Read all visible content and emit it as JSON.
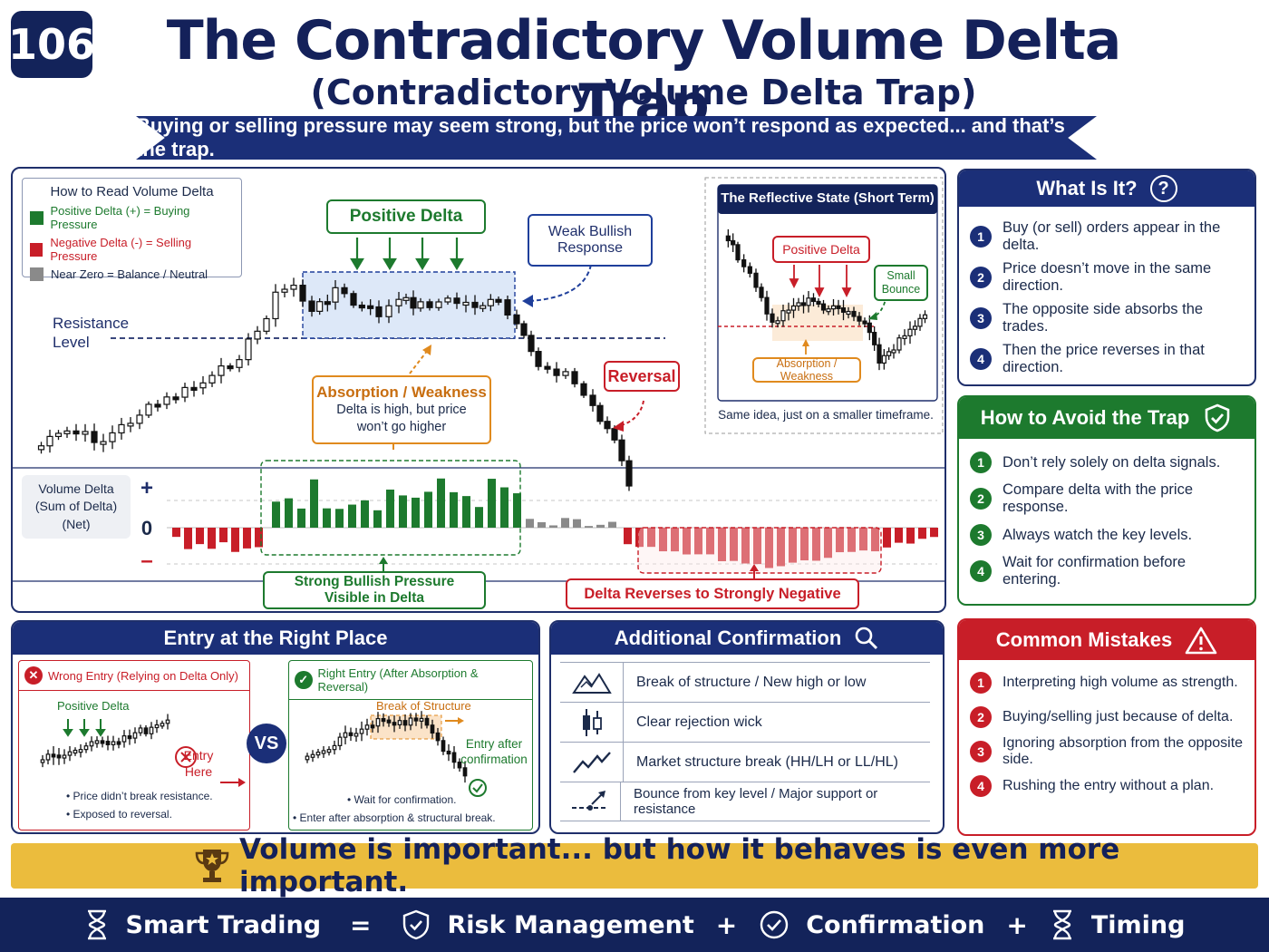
{
  "header": {
    "badge": "106",
    "title": "The Contradictory Volume Delta Trap",
    "subtitle": "(Contradictory Volume Delta Trap)",
    "banner": "Buying or selling pressure may seem strong, but the price won’t respond as expected... and that’s the trap."
  },
  "main_chart": {
    "legend": {
      "title": "How to Read Volume Delta",
      "positive": "Positive Delta (+) = Buying Pressure",
      "negative": "Negative Delta (-) = Selling Pressure",
      "neutral": "Near Zero = Balance / Neutral"
    },
    "resistance_label": "Resistance\nLevel",
    "positive_delta_label": "Positive Delta",
    "weak_bullish_label": "Weak Bullish\nResponse",
    "reversal_label": "Reversal",
    "absorption_title": "Absorption / Weakness",
    "absorption_text": "Delta is high, but price\nwon’t go higher",
    "volume_delta_label": "Volume Delta\n(Sum of Delta)\n(Net)",
    "plus_sign": "+",
    "zero_sign": "0",
    "minus_sign": "–",
    "strong_bullish_label": "Strong Bullish Pressure\nVisible in Delta",
    "delta_reverses_label": "Delta Reverses to Strongly Negative",
    "colors": {
      "bull": "#1d7a2e",
      "bear": "#c81e28",
      "neutral": "#8a8a8a",
      "accent": "#1f2f6b",
      "orange": "#e08a1e"
    }
  },
  "reflective": {
    "title": "The Reflective State (Short Term)",
    "positive_delta": "Positive Delta",
    "small_bounce": "Small\nBounce",
    "absorption": "Absorption / Weakness",
    "caption": "Same idea, just on a smaller timeframe."
  },
  "what_is_it": {
    "title": "What Is It?",
    "icon": "question-icon",
    "items": [
      "Buy (or sell) orders appear in the delta.",
      "Price doesn’t move in the same direction.",
      "The opposite side absorbs the trades.",
      "Then the price reverses in that direction."
    ]
  },
  "avoid_trap": {
    "title": "How to Avoid the Trap",
    "icon": "shield-check-icon",
    "items": [
      "Don’t rely solely on delta signals.",
      "Compare delta with the price response.",
      "Always watch the key levels.",
      "Wait for confirmation before entering."
    ]
  },
  "entry": {
    "title": "Entry at the Right Place",
    "wrong_title": "Wrong Entry (Relying on Delta Only)",
    "wrong_positive_delta": "Positive Delta",
    "wrong_entry_here": "Entry\nHere",
    "wrong_notes": [
      "• Price didn’t break resistance.",
      "• Exposed to reversal."
    ],
    "vs": "VS",
    "right_title": "Right Entry (After Absorption & Reversal)",
    "right_break": "Break of Structure",
    "right_entry_after": "Entry after\nconfirmation",
    "right_notes": [
      "• Wait for confirmation.",
      "• Enter after absorption & structural break."
    ]
  },
  "confirmation": {
    "title": "Additional Confirmation",
    "icon": "magnifier-icon",
    "rows": [
      {
        "icon": "mountain-peaks-icon",
        "text": "Break of structure / New high or low"
      },
      {
        "icon": "candlestick-icon",
        "text": "Clear rejection wick"
      },
      {
        "icon": "zigzag-trend-icon",
        "text": "Market structure break (HH/LH or LL/HL)"
      },
      {
        "icon": "bounce-arrow-icon",
        "text": "Bounce from key level / Major support or resistance"
      }
    ]
  },
  "mistakes": {
    "title": "Common Mistakes",
    "icon": "warning-triangle-icon",
    "items": [
      "Interpreting high volume as strength.",
      "Buying/selling just because of delta.",
      "Ignoring absorption from the opposite side.",
      "Rushing the entry without a plan."
    ]
  },
  "footer": {
    "quote": "Volume is important... but how it behaves is even more important.",
    "quote_icon": "trophy-icon",
    "formula": [
      {
        "icon": "hourglass-icon",
        "text": "Smart Trading"
      },
      {
        "op": "="
      },
      {
        "icon": "shield-check-icon",
        "text": "Risk Management"
      },
      {
        "op": "+"
      },
      {
        "icon": "check-circle-icon",
        "text": "Confirmation"
      },
      {
        "op": "+"
      },
      {
        "icon": "hourglass-icon",
        "text": "Timing"
      }
    ]
  }
}
